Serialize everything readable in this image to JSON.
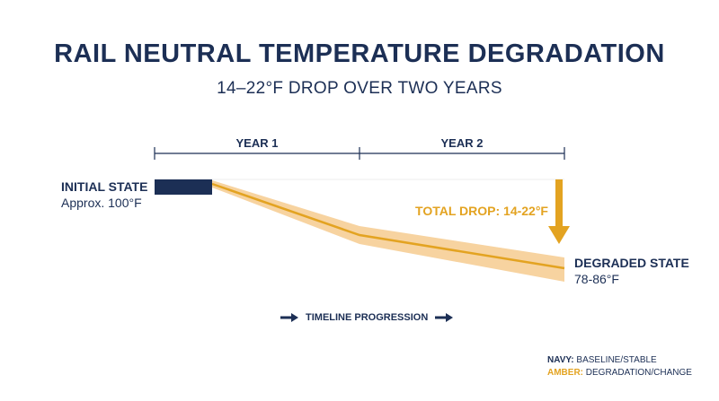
{
  "header": {
    "title": "RAIL NEUTRAL TEMPERATURE DEGRADATION",
    "subtitle": "14–22°F DROP OVER TWO YEARS"
  },
  "timeline_bar": {
    "year1_label": "YEAR 1",
    "year2_label": "YEAR 2"
  },
  "initial_state": {
    "title": "INITIAL STATE",
    "value": "Approx. 100°F"
  },
  "degraded_state": {
    "title": "DEGRADED STATE",
    "value": "78-86°F"
  },
  "total_drop_label": "TOTAL DROP: 14-22°F",
  "timeline_progression_label": "TIMELINE PROGRESSION",
  "legend": {
    "navy_key": "NAVY:",
    "navy_desc": "BASELINE/STABLE",
    "amber_key": "AMBER:",
    "amber_desc": "DEGRADATION/CHANGE"
  },
  "colors": {
    "navy": "#1c2f55",
    "amber": "#e3a321",
    "amber_light": "#f7d3a0"
  },
  "icons": {
    "down_arrow": "down-arrow-icon",
    "right_arrow": "right-arrow-icon"
  }
}
